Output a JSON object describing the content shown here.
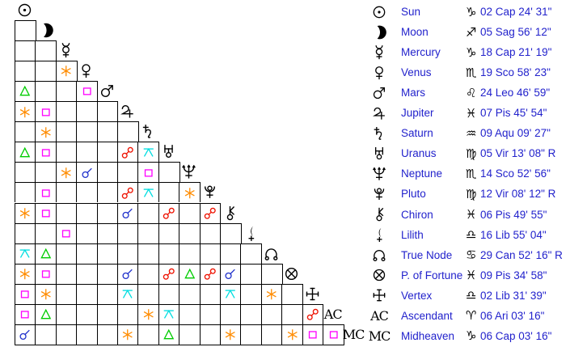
{
  "app": {
    "description": "Natal chart aspect grid with planet positions"
  },
  "colors": {
    "background": "#ffffff",
    "grid_line": "#000000",
    "glyph": "#000000",
    "table_text": "#2222cc",
    "aspects": {
      "conjunction": "#2233cc",
      "sextile": "#ff8c00",
      "square": "#ff00ff",
      "trine": "#00cc00",
      "opposition": "#ee1100",
      "quincunx": "#00dde0"
    }
  },
  "bodies": [
    {
      "id": "sun",
      "icon": "sun-icon",
      "name": "Sun",
      "sign": "Cap",
      "sign_symbol": "♑",
      "position": "02 Cap 24' 31\""
    },
    {
      "id": "moon",
      "icon": "moon-icon",
      "name": "Moon",
      "sign": "Sag",
      "sign_symbol": "♐",
      "position": "05 Sag 56' 12\""
    },
    {
      "id": "mercury",
      "icon": "mercury-icon",
      "name": "Mercury",
      "sign": "Cap",
      "sign_symbol": "♑",
      "position": "18 Cap 21' 19\""
    },
    {
      "id": "venus",
      "icon": "venus-icon",
      "name": "Venus",
      "sign": "Sco",
      "sign_symbol": "♏",
      "position": "19 Sco 58' 23\""
    },
    {
      "id": "mars",
      "icon": "mars-icon",
      "name": "Mars",
      "sign": "Leo",
      "sign_symbol": "♌",
      "position": "24 Leo 46' 59\""
    },
    {
      "id": "jupiter",
      "icon": "jupiter-icon",
      "name": "Jupiter",
      "sign": "Pis",
      "sign_symbol": "♓",
      "position": "07 Pis 45' 54\""
    },
    {
      "id": "saturn",
      "icon": "saturn-icon",
      "name": "Saturn",
      "sign": "Aqu",
      "sign_symbol": "♒",
      "position": "09 Aqu 09' 27\""
    },
    {
      "id": "uranus",
      "icon": "uranus-icon",
      "name": "Uranus",
      "sign": "Vir",
      "sign_symbol": "♍",
      "position": "05 Vir 13' 08\" R"
    },
    {
      "id": "neptune",
      "icon": "neptune-icon",
      "name": "Neptune",
      "sign": "Sco",
      "sign_symbol": "♏",
      "position": "14 Sco 52' 56\""
    },
    {
      "id": "pluto",
      "icon": "pluto-icon",
      "name": "Pluto",
      "sign": "Vir",
      "sign_symbol": "♍",
      "position": "12 Vir 08' 12\" R"
    },
    {
      "id": "chiron",
      "icon": "chiron-icon",
      "name": "Chiron",
      "sign": "Pis",
      "sign_symbol": "♓",
      "position": "06 Pis 49' 55\""
    },
    {
      "id": "lilith",
      "icon": "lilith-icon",
      "name": "Lilith",
      "sign": "Lib",
      "sign_symbol": "♎",
      "position": "16 Lib 55' 04\""
    },
    {
      "id": "true-node",
      "icon": "true-node-icon",
      "name": "True Node",
      "sign": "Can",
      "sign_symbol": "♋",
      "position": "29 Can 52' 16\" R"
    },
    {
      "id": "fortune",
      "icon": "part-of-fortune-icon",
      "name": "P. of Fortune",
      "sign": "Pis",
      "sign_symbol": "♓",
      "position": "09 Pis 34' 58\""
    },
    {
      "id": "vertex",
      "icon": "vertex-icon",
      "name": "Vertex",
      "sign": "Lib",
      "sign_symbol": "♎",
      "position": "02 Lib 31' 39\""
    },
    {
      "id": "ascendant",
      "abbr": "AC",
      "name": "Ascendant",
      "sign": "Ari",
      "sign_symbol": "♈",
      "position": "06 Ari 03' 16\""
    },
    {
      "id": "midheaven",
      "abbr": "MC",
      "name": "Midheaven",
      "sign": "Cap",
      "sign_symbol": "♑",
      "position": "06 Cap 03' 16\""
    }
  ],
  "aspect_grid": {
    "cells": [
      {
        "row": 3,
        "col": 2,
        "type": "sextile"
      },
      {
        "row": 4,
        "col": 0,
        "type": "trine"
      },
      {
        "row": 4,
        "col": 3,
        "type": "square"
      },
      {
        "row": 5,
        "col": 0,
        "type": "sextile"
      },
      {
        "row": 5,
        "col": 1,
        "type": "square"
      },
      {
        "row": 6,
        "col": 1,
        "type": "sextile"
      },
      {
        "row": 7,
        "col": 0,
        "type": "trine"
      },
      {
        "row": 7,
        "col": 1,
        "type": "square"
      },
      {
        "row": 7,
        "col": 5,
        "type": "opposition"
      },
      {
        "row": 7,
        "col": 6,
        "type": "quincunx"
      },
      {
        "row": 8,
        "col": 2,
        "type": "sextile"
      },
      {
        "row": 8,
        "col": 3,
        "type": "conjunction"
      },
      {
        "row": 8,
        "col": 6,
        "type": "square"
      },
      {
        "row": 9,
        "col": 1,
        "type": "square"
      },
      {
        "row": 9,
        "col": 5,
        "type": "opposition"
      },
      {
        "row": 9,
        "col": 6,
        "type": "quincunx"
      },
      {
        "row": 9,
        "col": 8,
        "type": "sextile"
      },
      {
        "row": 10,
        "col": 0,
        "type": "sextile"
      },
      {
        "row": 10,
        "col": 1,
        "type": "square"
      },
      {
        "row": 10,
        "col": 5,
        "type": "conjunction"
      },
      {
        "row": 10,
        "col": 7,
        "type": "opposition"
      },
      {
        "row": 10,
        "col": 9,
        "type": "opposition"
      },
      {
        "row": 11,
        "col": 2,
        "type": "square"
      },
      {
        "row": 12,
        "col": 0,
        "type": "quincunx"
      },
      {
        "row": 12,
        "col": 1,
        "type": "trine"
      },
      {
        "row": 13,
        "col": 0,
        "type": "sextile"
      },
      {
        "row": 13,
        "col": 1,
        "type": "square"
      },
      {
        "row": 13,
        "col": 5,
        "type": "conjunction"
      },
      {
        "row": 13,
        "col": 7,
        "type": "opposition"
      },
      {
        "row": 13,
        "col": 8,
        "type": "trine"
      },
      {
        "row": 13,
        "col": 9,
        "type": "opposition"
      },
      {
        "row": 13,
        "col": 10,
        "type": "conjunction"
      },
      {
        "row": 14,
        "col": 0,
        "type": "square"
      },
      {
        "row": 14,
        "col": 1,
        "type": "sextile"
      },
      {
        "row": 14,
        "col": 5,
        "type": "quincunx"
      },
      {
        "row": 14,
        "col": 10,
        "type": "quincunx"
      },
      {
        "row": 14,
        "col": 12,
        "type": "sextile"
      },
      {
        "row": 15,
        "col": 0,
        "type": "square"
      },
      {
        "row": 15,
        "col": 1,
        "type": "trine"
      },
      {
        "row": 15,
        "col": 6,
        "type": "sextile"
      },
      {
        "row": 15,
        "col": 7,
        "type": "quincunx"
      },
      {
        "row": 15,
        "col": 14,
        "type": "opposition"
      },
      {
        "row": 16,
        "col": 0,
        "type": "conjunction"
      },
      {
        "row": 16,
        "col": 5,
        "type": "sextile"
      },
      {
        "row": 16,
        "col": 7,
        "type": "trine"
      },
      {
        "row": 16,
        "col": 10,
        "type": "sextile"
      },
      {
        "row": 16,
        "col": 13,
        "type": "sextile"
      },
      {
        "row": 16,
        "col": 14,
        "type": "square"
      },
      {
        "row": 16,
        "col": 15,
        "type": "square"
      }
    ]
  }
}
